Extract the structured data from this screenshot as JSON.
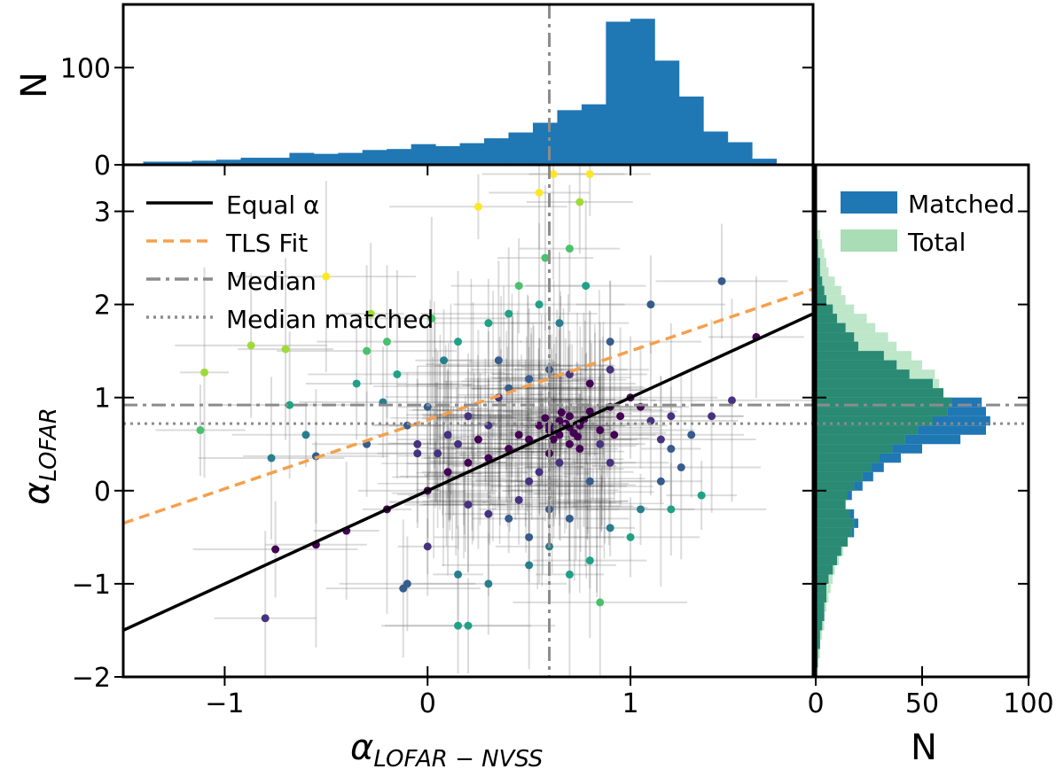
{
  "chart_data": [
    {
      "panel": "top-histogram",
      "type": "bar",
      "ylabel": "N",
      "xlim": [
        -1.5,
        1.9
      ],
      "ylim": [
        0,
        165
      ],
      "yticks": [
        0,
        100
      ],
      "bin_edges": [
        -1.4,
        -1.28,
        -1.16,
        -1.04,
        -0.92,
        -0.8,
        -0.68,
        -0.56,
        -0.44,
        -0.32,
        -0.2,
        -0.08,
        0.04,
        0.16,
        0.28,
        0.4,
        0.52,
        0.64,
        0.76,
        0.88,
        1.0,
        1.12,
        1.24,
        1.36,
        1.48,
        1.6,
        1.72
      ],
      "counts": [
        3,
        3,
        4,
        5,
        7,
        7,
        12,
        11,
        12,
        15,
        16,
        21,
        19,
        22,
        27,
        33,
        43,
        56,
        62,
        147,
        150,
        107,
        70,
        34,
        23,
        6
      ],
      "median_alpha_lofar_nvss": 0.6
    },
    {
      "panel": "main-scatter",
      "type": "scatter",
      "xlabel": "α",
      "xlabel_sub": "LOFAR − NVSS",
      "ylabel": "α",
      "ylabel_sub": "LOFAR",
      "xlim": [
        -1.5,
        1.9
      ],
      "ylim": [
        -2,
        3.5
      ],
      "xticks": [
        -1,
        0,
        1
      ],
      "xtick_labels": [
        "−1",
        "0",
        "1"
      ],
      "yticks": [
        -2,
        -1,
        0,
        1,
        2,
        3
      ],
      "ytick_labels": [
        "−2",
        "−1",
        "0",
        "1",
        "2",
        "3"
      ],
      "legend_position": "top-left",
      "legend": [
        {
          "label": "Equal α",
          "style": "solid",
          "color": "#000000"
        },
        {
          "label": "TLS Fit",
          "style": "dashed",
          "color": "#f5a04b"
        },
        {
          "label": "Median",
          "style": "dashdot",
          "color": "#8c8c8c"
        },
        {
          "label": "Median matched",
          "style": "dotted",
          "color": "#8c8c8c"
        }
      ],
      "equal_alpha_line": {
        "slope": 1,
        "intercept": 0
      },
      "tls_fit_line": {
        "slope": 0.74,
        "intercept": 0.76
      },
      "median_x": 0.6,
      "median_y": 0.92,
      "median_matched_y": 0.72,
      "points": [
        [
          -1.1,
          1.27
        ],
        [
          -1.12,
          0.65
        ],
        [
          -0.87,
          1.56
        ],
        [
          -0.7,
          1.52
        ],
        [
          -0.68,
          0.92
        ],
        [
          -0.77,
          0.35
        ],
        [
          -0.75,
          -0.63
        ],
        [
          -0.8,
          -1.37
        ],
        [
          -0.6,
          0.6
        ],
        [
          -0.55,
          0.37
        ],
        [
          -0.5,
          2.3
        ],
        [
          -0.28,
          1.9
        ],
        [
          -0.3,
          1.5
        ],
        [
          -0.2,
          1.6
        ],
        [
          -0.15,
          1.25
        ],
        [
          -0.35,
          1.15
        ],
        [
          -0.22,
          0.95
        ],
        [
          -0.1,
          0.7
        ],
        [
          -0.3,
          0.5
        ],
        [
          -0.05,
          0.4
        ],
        [
          0.02,
          1.85
        ],
        [
          0.08,
          1.4
        ],
        [
          0.15,
          1.6
        ],
        [
          0.3,
          1.8
        ],
        [
          0.25,
          3.05
        ],
        [
          0.55,
          3.2
        ],
        [
          0.62,
          3.4
        ],
        [
          0.8,
          3.4
        ],
        [
          0.75,
          3.1
        ],
        [
          0.7,
          2.6
        ],
        [
          0.58,
          2.5
        ],
        [
          0.45,
          2.2
        ],
        [
          0.4,
          1.9
        ],
        [
          0.55,
          2.0
        ],
        [
          0.65,
          1.8
        ],
        [
          0.78,
          2.2
        ],
        [
          0.9,
          1.6
        ],
        [
          1.1,
          2.0
        ],
        [
          1.45,
          2.25
        ],
        [
          1.62,
          1.65
        ],
        [
          1.5,
          0.97
        ],
        [
          1.4,
          0.8
        ],
        [
          1.2,
          0.45
        ],
        [
          1.35,
          -0.05
        ],
        [
          1.2,
          -0.2
        ],
        [
          1.0,
          -0.5
        ],
        [
          0.8,
          -0.75
        ],
        [
          0.7,
          -0.9
        ],
        [
          0.85,
          -1.2
        ],
        [
          0.5,
          -0.8
        ],
        [
          0.3,
          -1.0
        ],
        [
          0.15,
          -0.9
        ],
        [
          0.0,
          -0.6
        ],
        [
          -0.1,
          -1.0
        ],
        [
          -0.12,
          -1.05
        ],
        [
          0.15,
          -1.45
        ],
        [
          0.2,
          -1.45
        ],
        [
          -0.55,
          -0.58
        ],
        [
          -0.4,
          -0.43
        ],
        [
          -0.2,
          -0.2
        ],
        [
          0.0,
          0.0
        ],
        [
          0.1,
          0.2
        ],
        [
          0.2,
          0.3
        ],
        [
          0.3,
          0.35
        ],
        [
          0.4,
          0.45
        ],
        [
          0.45,
          0.6
        ],
        [
          0.5,
          0.55
        ],
        [
          0.55,
          0.7
        ],
        [
          0.6,
          0.65
        ],
        [
          0.65,
          0.75
        ],
        [
          0.7,
          0.8
        ],
        [
          0.75,
          0.7
        ],
        [
          0.8,
          0.85
        ],
        [
          0.85,
          0.65
        ],
        [
          0.9,
          0.9
        ],
        [
          0.95,
          0.8
        ],
        [
          1.0,
          1.0
        ],
        [
          1.05,
          0.9
        ],
        [
          1.1,
          0.75
        ],
        [
          0.6,
          0.4
        ],
        [
          0.65,
          0.3
        ],
        [
          0.7,
          0.5
        ],
        [
          0.75,
          0.45
        ],
        [
          0.55,
          0.2
        ],
        [
          0.5,
          0.1
        ],
        [
          0.45,
          -0.1
        ],
        [
          0.6,
          -0.2
        ],
        [
          0.7,
          -0.3
        ],
        [
          0.8,
          0.1
        ],
        [
          0.9,
          0.3
        ],
        [
          0.35,
          1.0
        ],
        [
          0.4,
          1.1
        ],
        [
          0.5,
          1.2
        ],
        [
          0.6,
          1.3
        ],
        [
          0.7,
          1.25
        ],
        [
          0.8,
          1.15
        ],
        [
          0.9,
          1.3
        ],
        [
          0.2,
          0.8
        ],
        [
          0.1,
          0.6
        ],
        [
          0.0,
          0.9
        ],
        [
          0.65,
          0.6
        ],
        [
          0.68,
          0.72
        ],
        [
          0.72,
          0.62
        ],
        [
          0.62,
          0.55
        ],
        [
          0.58,
          0.78
        ],
        [
          0.74,
          0.58
        ],
        [
          0.66,
          0.84
        ],
        [
          0.7,
          0.68
        ],
        [
          0.77,
          0.76
        ],
        [
          0.6,
          0.7
        ],
        [
          0.85,
          0.5
        ],
        [
          0.92,
          0.6
        ],
        [
          1.15,
          0.55
        ],
        [
          1.2,
          0.8
        ],
        [
          1.3,
          0.6
        ],
        [
          0.3,
          0.7
        ],
        [
          0.25,
          0.55
        ],
        [
          0.15,
          0.5
        ],
        [
          0.05,
          0.4
        ],
        [
          -0.05,
          0.5
        ],
        [
          0.4,
          -0.3
        ],
        [
          0.3,
          -0.25
        ],
        [
          0.2,
          -0.15
        ],
        [
          0.5,
          -0.5
        ],
        [
          0.6,
          -0.6
        ],
        [
          0.9,
          -0.4
        ],
        [
          1.05,
          -0.2
        ],
        [
          1.15,
          0.1
        ],
        [
          1.25,
          0.25
        ],
        [
          0.35,
          1.4
        ]
      ]
    },
    {
      "panel": "right-histogram",
      "type": "bar",
      "orientation": "horizontal",
      "xlabel": "N",
      "xlim": [
        0,
        100
      ],
      "xticks": [
        0,
        50,
        100
      ],
      "ylim": [
        -2,
        3.5
      ],
      "bin_edges": [
        -2.0,
        -1.9,
        -1.8,
        -1.7,
        -1.6,
        -1.5,
        -1.4,
        -1.3,
        -1.2,
        -1.1,
        -1.0,
        -0.9,
        -0.8,
        -0.7,
        -0.6,
        -0.5,
        -0.4,
        -0.3,
        -0.2,
        -0.1,
        0.0,
        0.1,
        0.2,
        0.3,
        0.4,
        0.5,
        0.6,
        0.7,
        0.8,
        0.9,
        1.0,
        1.1,
        1.2,
        1.3,
        1.4,
        1.5,
        1.6,
        1.7,
        1.8,
        1.9,
        2.0,
        2.1,
        2.2,
        2.3,
        2.4,
        2.5,
        2.6,
        2.7,
        2.8,
        2.9,
        3.0
      ],
      "series": [
        {
          "name": "Matched",
          "color": "#1f77b4",
          "values": [
            0,
            1,
            1,
            2,
            2,
            3,
            4,
            4,
            5,
            5,
            6,
            8,
            10,
            12,
            15,
            18,
            20,
            18,
            14,
            17,
            22,
            27,
            32,
            40,
            50,
            68,
            80,
            82,
            80,
            78,
            60,
            55,
            44,
            38,
            32,
            20,
            18,
            14,
            10,
            8,
            5,
            4,
            3,
            2,
            2,
            1,
            1,
            0,
            0,
            0
          ]
        },
        {
          "name": "Total",
          "color": "#a8ddb5",
          "values": [
            1,
            1,
            2,
            2,
            3,
            4,
            4,
            5,
            6,
            7,
            8,
            9,
            11,
            13,
            15,
            17,
            18,
            16,
            14,
            15,
            18,
            22,
            26,
            30,
            36,
            42,
            48,
            55,
            62,
            64,
            60,
            58,
            56,
            50,
            45,
            38,
            34,
            28,
            24,
            18,
            14,
            12,
            9,
            6,
            5,
            4,
            3,
            2,
            1,
            1
          ]
        }
      ],
      "median_alpha_lofar": 0.92,
      "median_matched_alpha_lofar": 0.72
    }
  ]
}
